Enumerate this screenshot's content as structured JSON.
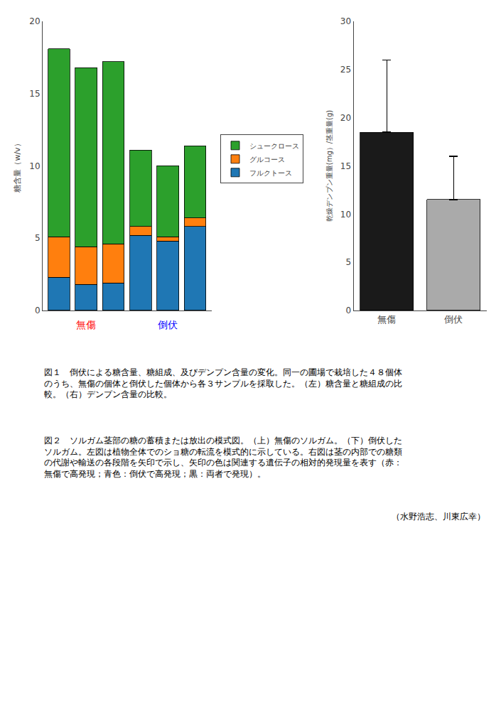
{
  "chart_data": [
    {
      "type": "bar",
      "stacked": true,
      "categories": [
        null,
        null,
        null,
        null,
        null,
        null
      ],
      "series": [
        {
          "name": "フルクトース",
          "values": [
            2.3,
            1.8,
            1.9,
            5.2,
            4.8,
            5.8
          ]
        },
        {
          "name": "グルコース",
          "values": [
            2.8,
            2.6,
            2.7,
            0.6,
            0.3,
            0.6
          ]
        },
        {
          "name": "シュークロース",
          "values": [
            13.0,
            12.4,
            12.6,
            5.3,
            4.9,
            5.0
          ]
        }
      ],
      "ylabel": "糖含量（w/v）",
      "ylim": [
        0,
        20
      ],
      "yticks": [
        0,
        5,
        10,
        15,
        20
      ],
      "grid": false,
      "legend": "right",
      "tick_labels": "y",
      "annotations": [
        {
          "text": "無傷",
          "x": 1,
          "color": "red"
        },
        {
          "text": "倒伏",
          "x": 4,
          "color": "blue"
        }
      ]
    },
    {
      "type": "bar",
      "categories": [
        "無傷",
        "倒伏"
      ],
      "values": [
        18.5,
        11.5
      ],
      "error_upper": [
        7.5,
        4.5
      ],
      "colors": [
        "#1a1a1a",
        "#aaaaaa"
      ],
      "ylabel": "乾燥デンプン重量(mg）/茎重量(g)",
      "ylim": [
        0,
        30
      ],
      "yticks": [
        0,
        5,
        10,
        15,
        20,
        25,
        30
      ],
      "grid": false
    }
  ],
  "annotations": [
    "図１　倒伏による糖含量、糖組成、及びデンプン含量の変化。同一の圃場で栽培した４８個体\nのうち、無傷の個体と倒伏した個体から各３サンプルを採取した。（左）糖含量と糖組成の比\n較。（右）デンプン含量の比較。",
    "図２　ソルガム茎部の糖の蓄積または放出の模式図。（上）無傷のソルガム。（下）倒伏した\nソルガム。左図は植物全体でのショ糖の転流を模式的に示している。右図は茎の内部での糖類\nの代謝や輸送の各段階を矢印で示し、矢印の色は関連する遺伝子の相対的発現量を表す（赤：\n無傷で高発現；青色：倒伏で高発現；黒：両者で発現）。",
    "（水野浩志、川東広幸）"
  ]
}
